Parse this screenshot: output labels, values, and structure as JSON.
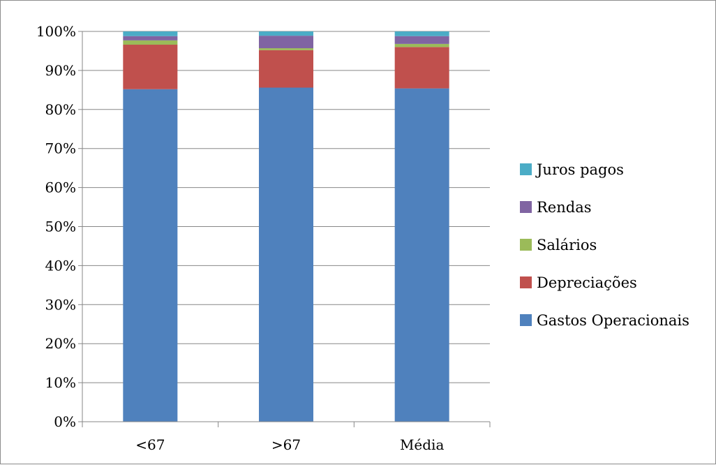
{
  "chart_data": {
    "type": "bar",
    "stacked": true,
    "percent": true,
    "categories": [
      "<67",
      ">67",
      "Média"
    ],
    "series": [
      {
        "name": "Gastos Operacionais",
        "color": "#4F81BD",
        "values": [
          85.2,
          85.6,
          85.4
        ]
      },
      {
        "name": "Depreciações",
        "color": "#C0504D",
        "values": [
          11.4,
          9.6,
          10.6
        ]
      },
      {
        "name": "Salários",
        "color": "#9BBB59",
        "values": [
          1.1,
          0.5,
          0.8
        ]
      },
      {
        "name": "Rendas",
        "color": "#8064A2",
        "values": [
          1.1,
          3.2,
          2.0
        ]
      },
      {
        "name": "Juros pagos",
        "color": "#4BACC6",
        "values": [
          1.2,
          1.1,
          1.2
        ]
      }
    ],
    "y_ticks": [
      "0%",
      "10%",
      "20%",
      "30%",
      "40%",
      "50%",
      "60%",
      "70%",
      "80%",
      "90%",
      "100%"
    ],
    "ylim": [
      0,
      100
    ],
    "grid": true,
    "legend_position": "right",
    "title": "",
    "xlabel": "",
    "ylabel": ""
  }
}
